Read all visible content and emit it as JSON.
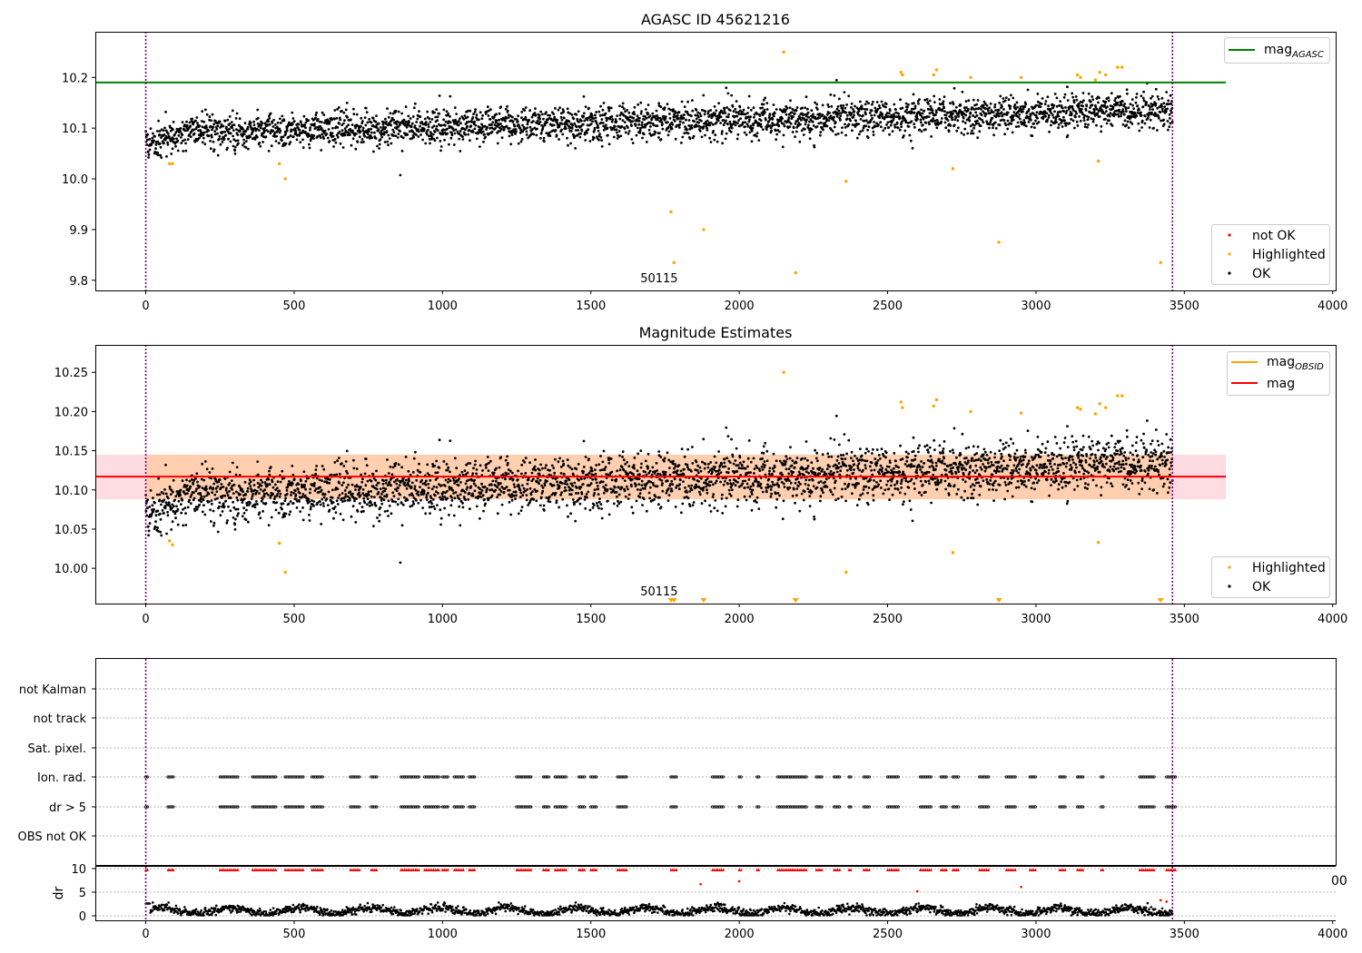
{
  "chart_data": [
    {
      "type": "scatter",
      "title": "AGASC ID 45621216",
      "xlim": [
        -170,
        4010
      ],
      "ylim": [
        9.78,
        10.29
      ],
      "xticks": [
        0,
        500,
        1000,
        1500,
        2000,
        2500,
        3000,
        3500,
        4000
      ],
      "yticks": [
        9.8,
        9.9,
        10.0,
        10.1,
        10.2
      ],
      "ytick_labels": [
        "9.8",
        "9.9",
        "10.0",
        "10.1",
        "10.2"
      ],
      "obsid_label": "50115",
      "obsid_label_x": 1730,
      "obs_bounds": [
        0,
        3460
      ],
      "mag_agasc": {
        "value": 10.19,
        "x_range": [
          0,
          3640
        ],
        "color": "#008000"
      },
      "highlighted": [
        [
          80,
          10.03
        ],
        [
          90,
          10.03
        ],
        [
          450,
          10.03
        ],
        [
          470,
          10.0
        ],
        [
          1770,
          9.935
        ],
        [
          1780,
          9.835
        ],
        [
          1880,
          9.9
        ],
        [
          2150,
          10.25
        ],
        [
          2190,
          9.815
        ],
        [
          2360,
          9.995
        ],
        [
          2545,
          10.21
        ],
        [
          2550,
          10.205
        ],
        [
          2655,
          10.205
        ],
        [
          2665,
          10.215
        ],
        [
          2720,
          10.02
        ],
        [
          2780,
          10.2
        ],
        [
          2875,
          9.875
        ],
        [
          2950,
          10.2
        ],
        [
          3140,
          10.205
        ],
        [
          3150,
          10.2
        ],
        [
          3200,
          10.195
        ],
        [
          3210,
          10.035
        ],
        [
          3215,
          10.21
        ],
        [
          3235,
          10.205
        ],
        [
          3275,
          10.22
        ],
        [
          3290,
          10.22
        ],
        [
          3420,
          9.835
        ]
      ],
      "not_ok": [],
      "legend_line": [
        {
          "label": "mag",
          "sub": "AGASC",
          "color": "#008000"
        }
      ],
      "legend_points": [
        {
          "label": "not OK",
          "color": "#ff0000"
        },
        {
          "label": "Highlighted",
          "color": "#ffa500"
        },
        {
          "label": "OK",
          "color": "#000000"
        }
      ]
    },
    {
      "type": "scatter",
      "title": "Magnitude Estimates",
      "xlim": [
        -170,
        4010
      ],
      "ylim": [
        9.955,
        10.285
      ],
      "xticks": [
        0,
        500,
        1000,
        1500,
        2000,
        2500,
        3000,
        3500,
        4000
      ],
      "yticks": [
        10.0,
        10.05,
        10.1,
        10.15,
        10.2,
        10.25
      ],
      "ytick_labels": [
        "10.00",
        "10.05",
        "10.10",
        "10.15",
        "10.20",
        "10.25"
      ],
      "obsid_label": "50115",
      "obsid_label_x": 1730,
      "obs_bounds": [
        0,
        3460
      ],
      "mag": {
        "value": 10.117,
        "color": "#ff0000"
      },
      "band_outer": {
        "low": 10.088,
        "high": 10.145,
        "x_range": [
          -170,
          3640
        ],
        "color": "#ffc0cb"
      },
      "band_inner": {
        "low": 10.088,
        "high": 10.145,
        "x_range": [
          0,
          3460
        ],
        "color": "#ffa500"
      },
      "highlighted": [
        [
          80,
          10.035
        ],
        [
          90,
          10.03
        ],
        [
          450,
          10.032
        ],
        [
          470,
          9.995
        ],
        [
          2150,
          10.25
        ],
        [
          2360,
          9.995
        ],
        [
          2545,
          10.212
        ],
        [
          2550,
          10.205
        ],
        [
          2655,
          10.207
        ],
        [
          2665,
          10.215
        ],
        [
          2720,
          10.02
        ],
        [
          2780,
          10.2
        ],
        [
          2950,
          10.198
        ],
        [
          3140,
          10.205
        ],
        [
          3150,
          10.203
        ],
        [
          3200,
          10.197
        ],
        [
          3210,
          10.033
        ],
        [
          3215,
          10.21
        ],
        [
          3235,
          10.205
        ],
        [
          3275,
          10.22
        ],
        [
          3290,
          10.22
        ]
      ],
      "offscale_markers": [
        1770,
        1780,
        1880,
        2190,
        2875,
        3420
      ],
      "legend_line": [
        {
          "label": "mag",
          "sub": "OBSID",
          "color": "#ffa500"
        },
        {
          "label": "mag",
          "sub": "",
          "color": "#ff0000"
        }
      ],
      "legend_points": [
        {
          "label": "Highlighted",
          "color": "#ffa500"
        },
        {
          "label": "OK",
          "color": "#000000"
        }
      ]
    },
    {
      "type": "scatter",
      "title": "",
      "xlim": [
        -170,
        4010
      ],
      "flag_rows": [
        "not Kalman",
        "not track",
        "Sat. pixel.",
        "Ion. rad.",
        "dr > 5",
        "OBS not OK"
      ],
      "flag_segments": [
        [
          0,
          8
        ],
        [
          75,
          95
        ],
        [
          250,
          310
        ],
        [
          360,
          440
        ],
        [
          470,
          530
        ],
        [
          560,
          600
        ],
        [
          690,
          720
        ],
        [
          760,
          780
        ],
        [
          860,
          920
        ],
        [
          940,
          990
        ],
        [
          1000,
          1020
        ],
        [
          1040,
          1070
        ],
        [
          1090,
          1110
        ],
        [
          1250,
          1300
        ],
        [
          1340,
          1360
        ],
        [
          1380,
          1420
        ],
        [
          1460,
          1480
        ],
        [
          1500,
          1520
        ],
        [
          1590,
          1620
        ],
        [
          1770,
          1790
        ],
        [
          1910,
          1950
        ],
        [
          2000,
          2010
        ],
        [
          2060,
          2070
        ],
        [
          2130,
          2230
        ],
        [
          2260,
          2280
        ],
        [
          2320,
          2340
        ],
        [
          2370,
          2380
        ],
        [
          2420,
          2440
        ],
        [
          2500,
          2540
        ],
        [
          2610,
          2650
        ],
        [
          2680,
          2700
        ],
        [
          2720,
          2740
        ],
        [
          2810,
          2840
        ],
        [
          2900,
          2930
        ],
        [
          2980,
          3000
        ],
        [
          3080,
          3100
        ],
        [
          3140,
          3160
        ],
        [
          3220,
          3230
        ],
        [
          3350,
          3400
        ],
        [
          3440,
          3470
        ]
      ],
      "obs_bounds": [
        0,
        3460
      ],
      "dr": {
        "ylabel": "dr",
        "ylim": [
          0,
          10
        ],
        "yticks": [
          0,
          5,
          10
        ],
        "ytick_labels": [
          "0",
          "5",
          "10"
        ],
        "outliers": [
          [
            1870,
            6.7
          ],
          [
            2000,
            7.3
          ],
          [
            2600,
            5.2
          ],
          [
            2950,
            6.1
          ],
          [
            3420,
            3.3
          ],
          [
            3440,
            3.0
          ]
        ],
        "clipped_right_label": "00"
      },
      "xtick_labels": [
        "0",
        "500",
        "1000",
        "1500",
        "2000",
        "2500",
        "3000",
        "3500",
        "4000"
      ]
    }
  ]
}
